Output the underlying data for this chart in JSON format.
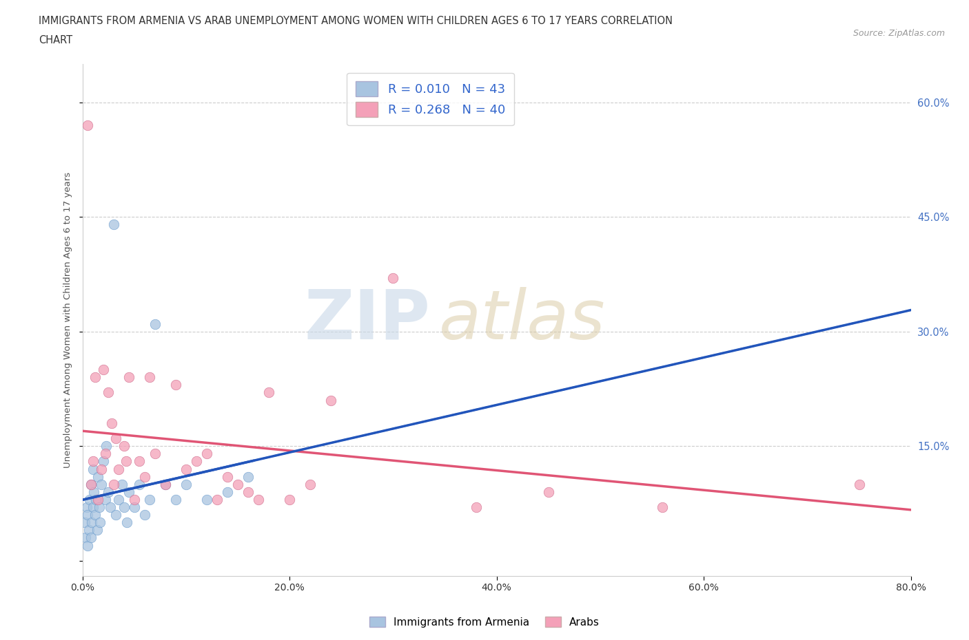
{
  "title_line1": "IMMIGRANTS FROM ARMENIA VS ARAB UNEMPLOYMENT AMONG WOMEN WITH CHILDREN AGES 6 TO 17 YEARS CORRELATION",
  "title_line2": "CHART",
  "source": "Source: ZipAtlas.com",
  "ylabel": "Unemployment Among Women with Children Ages 6 to 17 years",
  "xlim": [
    0.0,
    0.8
  ],
  "ylim": [
    -0.02,
    0.65
  ],
  "xticks": [
    0.0,
    0.2,
    0.4,
    0.6,
    0.8
  ],
  "xticklabels": [
    "0.0%",
    "20.0%",
    "40.0%",
    "60.0%",
    "80.0%"
  ],
  "yticks": [
    0.0,
    0.15,
    0.3,
    0.45,
    0.6
  ],
  "yticklabels": [
    "",
    "15.0%",
    "30.0%",
    "45.0%",
    "60.0%"
  ],
  "legend_labels": [
    "Immigrants from Armenia",
    "Arabs"
  ],
  "armenia_color": "#a8c4e0",
  "arab_color": "#f4a0b8",
  "armenia_line_color": "#2255bb",
  "arab_line_color": "#e05575",
  "armenia_R": 0.01,
  "armenia_N": 43,
  "arab_R": 0.268,
  "arab_N": 40,
  "background_color": "#ffffff",
  "grid_color": "#cccccc",
  "armenia_scatter_x": [
    0.002,
    0.003,
    0.004,
    0.005,
    0.005,
    0.006,
    0.007,
    0.008,
    0.008,
    0.009,
    0.01,
    0.01,
    0.011,
    0.012,
    0.013,
    0.014,
    0.015,
    0.016,
    0.017,
    0.018,
    0.02,
    0.022,
    0.023,
    0.025,
    0.027,
    0.03,
    0.032,
    0.035,
    0.038,
    0.04,
    0.043,
    0.045,
    0.05,
    0.055,
    0.06,
    0.065,
    0.07,
    0.08,
    0.09,
    0.1,
    0.12,
    0.14,
    0.16
  ],
  "armenia_scatter_y": [
    0.05,
    0.03,
    0.07,
    0.02,
    0.06,
    0.04,
    0.08,
    0.03,
    0.1,
    0.05,
    0.07,
    0.12,
    0.09,
    0.06,
    0.08,
    0.04,
    0.11,
    0.07,
    0.05,
    0.1,
    0.13,
    0.08,
    0.15,
    0.09,
    0.07,
    0.44,
    0.06,
    0.08,
    0.1,
    0.07,
    0.05,
    0.09,
    0.07,
    0.1,
    0.06,
    0.08,
    0.31,
    0.1,
    0.08,
    0.1,
    0.08,
    0.09,
    0.11
  ],
  "arab_scatter_x": [
    0.005,
    0.008,
    0.01,
    0.012,
    0.015,
    0.018,
    0.02,
    0.022,
    0.025,
    0.028,
    0.03,
    0.032,
    0.035,
    0.04,
    0.042,
    0.045,
    0.05,
    0.055,
    0.06,
    0.065,
    0.07,
    0.08,
    0.09,
    0.1,
    0.11,
    0.12,
    0.13,
    0.14,
    0.15,
    0.16,
    0.17,
    0.18,
    0.2,
    0.22,
    0.24,
    0.3,
    0.38,
    0.45,
    0.56,
    0.75
  ],
  "arab_scatter_y": [
    0.57,
    0.1,
    0.13,
    0.24,
    0.08,
    0.12,
    0.25,
    0.14,
    0.22,
    0.18,
    0.1,
    0.16,
    0.12,
    0.15,
    0.13,
    0.24,
    0.08,
    0.13,
    0.11,
    0.24,
    0.14,
    0.1,
    0.23,
    0.12,
    0.13,
    0.14,
    0.08,
    0.11,
    0.1,
    0.09,
    0.08,
    0.22,
    0.08,
    0.1,
    0.21,
    0.37,
    0.07,
    0.09,
    0.07,
    0.1
  ]
}
